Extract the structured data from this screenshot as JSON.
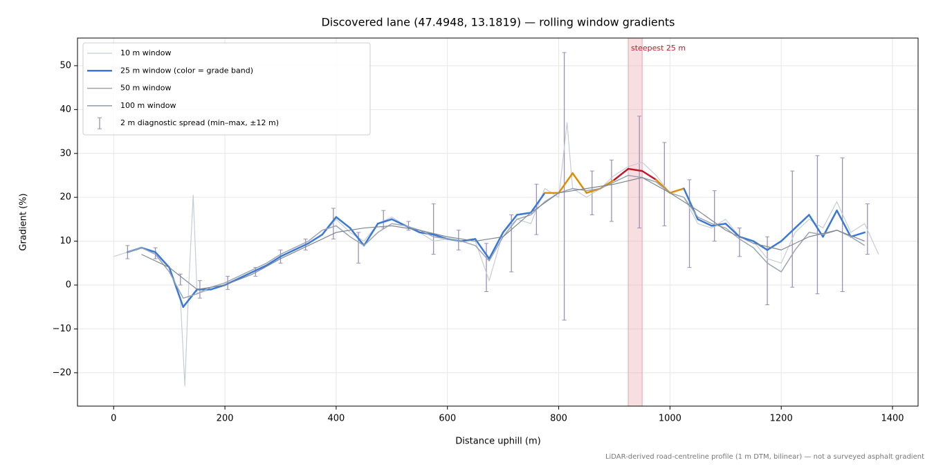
{
  "chart_data": {
    "type": "line",
    "title": "Discovered lane (47.4948, 13.1819) — rolling window gradients",
    "x_label": "Distance uphill (m)",
    "y_label": "Gradient (%)",
    "footnote": "LiDAR-derived road-centreline profile (1 m DTM, bilinear) — not a surveyed asphalt gradient",
    "xlim": [
      -65,
      1446
    ],
    "ylim": [
      -27.6,
      56.3
    ],
    "xticks": [
      0,
      200,
      400,
      600,
      800,
      1000,
      1200,
      1400
    ],
    "yticks": [
      {
        "value": -20,
        "label": "−20"
      },
      {
        "value": -10,
        "label": "−10"
      },
      0,
      10,
      20,
      30,
      40,
      50
    ],
    "grid": true,
    "legend": "upper left",
    "highlight": {
      "label": "steepest 25 m",
      "span": [
        925,
        950
      ],
      "color": "#e8a0a8"
    },
    "grade_bands": [
      {
        "max": 20,
        "color": "#3a78d8"
      },
      {
        "max": 25,
        "color": "#e08c00"
      },
      {
        "max": null,
        "color": "#c0182a"
      }
    ],
    "series": [
      {
        "name": "10 m window",
        "color": "#c5ccd4",
        "width": 1.2,
        "x": [
          0,
          25,
          50,
          75,
          100,
          120,
          128,
          135,
          143,
          150,
          175,
          200,
          225,
          250,
          275,
          300,
          325,
          350,
          375,
          400,
          425,
          450,
          475,
          500,
          525,
          550,
          575,
          600,
          625,
          650,
          675,
          700,
          725,
          750,
          775,
          800,
          815,
          825,
          850,
          875,
          900,
          925,
          950,
          975,
          1000,
          1025,
          1050,
          1075,
          1100,
          1125,
          1150,
          1175,
          1200,
          1225,
          1250,
          1275,
          1300,
          1325,
          1350,
          1375
        ],
        "values": [
          6.5,
          7.5,
          8.5,
          7,
          4,
          -3,
          -23,
          0,
          20.5,
          -2,
          -1,
          0,
          1.5,
          3,
          4.5,
          6.5,
          8,
          9.5,
          11.5,
          15,
          12,
          10,
          14,
          15.5,
          13.5,
          12,
          10,
          10.5,
          10,
          10,
          1,
          12,
          15,
          14,
          22,
          20,
          37,
          22,
          20,
          22,
          25,
          27,
          28,
          25,
          21,
          20,
          14,
          13,
          15,
          11,
          10,
          6,
          5,
          12,
          15,
          13,
          19,
          12,
          14,
          7
        ]
      },
      {
        "name": "25 m window (color = grade band)",
        "color": "#3a78d8",
        "width": 2.5,
        "banded": true,
        "x": [
          25,
          50,
          75,
          100,
          125,
          150,
          175,
          200,
          225,
          250,
          275,
          300,
          325,
          350,
          375,
          400,
          425,
          450,
          475,
          500,
          525,
          550,
          575,
          600,
          625,
          650,
          675,
          700,
          725,
          750,
          775,
          800,
          825,
          850,
          875,
          900,
          925,
          950,
          975,
          1000,
          1025,
          1050,
          1075,
          1100,
          1125,
          1150,
          1175,
          1200,
          1225,
          1250,
          1275,
          1300,
          1325,
          1350
        ],
        "values": [
          7.5,
          8.5,
          7.5,
          4,
          -5,
          -1,
          -1,
          0,
          1.5,
          3,
          4.5,
          6.5,
          8,
          9.5,
          11.5,
          15.5,
          13,
          9,
          14,
          15,
          13.5,
          12,
          11.5,
          10.5,
          10,
          10.5,
          6,
          12,
          16,
          16.5,
          21,
          21,
          25.5,
          21,
          22,
          24,
          26.5,
          26,
          24,
          21,
          22,
          15,
          13.5,
          14,
          11,
          10,
          8,
          10,
          13,
          16,
          11,
          17,
          11,
          12
        ]
      },
      {
        "name": "50 m window",
        "color": "#9aa5b1",
        "width": 1.5,
        "x": [
          25,
          50,
          75,
          100,
          125,
          150,
          175,
          200,
          225,
          250,
          275,
          300,
          325,
          350,
          375,
          400,
          425,
          450,
          475,
          500,
          525,
          550,
          575,
          600,
          625,
          650,
          675,
          700,
          725,
          750,
          775,
          800,
          825,
          850,
          875,
          900,
          925,
          950,
          975,
          1000,
          1025,
          1050,
          1075,
          1100,
          1125,
          1150,
          1175,
          1200,
          1225,
          1250,
          1275,
          1300,
          1325,
          1350
        ],
        "values": [
          7.5,
          8.5,
          7,
          3,
          -3,
          -2,
          -0.5,
          0.5,
          2,
          3.5,
          5,
          7,
          8.5,
          10,
          12.5,
          13.5,
          11,
          9,
          12,
          14,
          13.5,
          12.5,
          11,
          10.5,
          10,
          9,
          5.5,
          11,
          15,
          16,
          19,
          21,
          22,
          21.5,
          22,
          23.5,
          25,
          24.5,
          23.5,
          21,
          20,
          15.5,
          14,
          13,
          10.5,
          8.5,
          5,
          3,
          8,
          12,
          11.5,
          12.5,
          11,
          9
        ]
      },
      {
        "name": "100 m window",
        "color": "#7d8791",
        "width": 1.2,
        "x": [
          50,
          100,
          150,
          200,
          250,
          300,
          350,
          400,
          450,
          500,
          550,
          600,
          650,
          700,
          750,
          800,
          850,
          900,
          950,
          1000,
          1050,
          1100,
          1150,
          1200,
          1250,
          1300,
          1350
        ],
        "values": [
          7,
          4,
          -1,
          0,
          2.5,
          6,
          9,
          12,
          13,
          13.5,
          12.5,
          11,
          10,
          11,
          16.5,
          21,
          22,
          23,
          24.5,
          21,
          17,
          12.5,
          9.5,
          8,
          11,
          12.5,
          10
        ]
      }
    ],
    "errorbars": {
      "name": "2 m diagnostic spread (min–max, ±12 m)",
      "color": "#9a8fb8",
      "x": [
        25,
        75,
        120,
        155,
        205,
        255,
        300,
        345,
        395,
        440,
        485,
        530,
        575,
        620,
        670,
        715,
        760,
        810,
        860,
        895,
        945,
        990,
        1035,
        1080,
        1125,
        1175,
        1220,
        1265,
        1310,
        1355
      ],
      "low": [
        6,
        6,
        0,
        -3,
        -1,
        2,
        5,
        8,
        10.5,
        5,
        13,
        12.5,
        7,
        8,
        -1.5,
        3,
        11.5,
        -8,
        16,
        14.5,
        13,
        13.5,
        4,
        10,
        6.5,
        -4.5,
        -0.5,
        -2,
        -1.5,
        7
      ],
      "high": [
        9,
        8.5,
        2.5,
        1,
        2,
        4,
        8,
        10.5,
        17.5,
        12,
        17,
        14.5,
        18.5,
        12.5,
        9.5,
        16,
        23,
        53,
        26,
        28.5,
        38.5,
        32.5,
        24,
        21.5,
        13,
        11,
        26,
        29.5,
        29,
        18.5
      ]
    }
  }
}
